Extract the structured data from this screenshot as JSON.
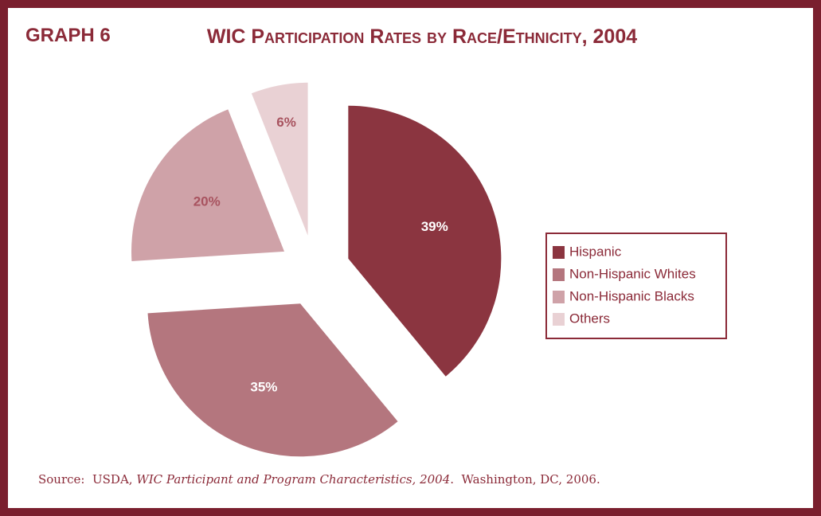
{
  "chart_data": {
    "type": "pie",
    "graph_label": "GRAPH 6",
    "title": "WIC Participation Rates by Race/Ethnicity, 2004",
    "categories": [
      "Hispanic",
      "Non-Hispanic Whites",
      "Non-Hispanic Blacks",
      "Others"
    ],
    "values": [
      39,
      35,
      20,
      6
    ],
    "value_labels": [
      "39%",
      "35%",
      "20%",
      "6%"
    ],
    "colors": [
      "#8b3540",
      "#b4767e",
      "#cfa2a8",
      "#e9d1d4"
    ],
    "legend": "right",
    "source": {
      "prefix": "Source:  USDA, ",
      "italic": "WIC Participant and Program Characteristics, 2004",
      "suffix": ".  Washington, DC, 2006."
    }
  }
}
